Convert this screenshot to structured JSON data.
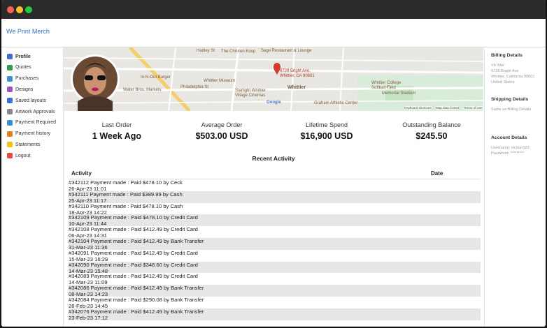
{
  "window": {
    "brand": "We Print Merch"
  },
  "nav": [
    "Profile",
    "Quotes",
    "Purchases",
    "Designs",
    "Saved layouts",
    "Artwork Approvals",
    "Payment Required",
    "Payment history",
    "Statements",
    "Logout"
  ],
  "map": {
    "labels": [
      "Hadley St",
      "The Chicken Koop",
      "Sage Restaurant & Lounge",
      "6728 Bright Ave,",
      "Whittier, CA 90601",
      "In-N-Out Burger",
      "Water Bros. Markets",
      "Philadelphia St",
      "Whittier Museum",
      "Whittier",
      "Starlight Whittier",
      "Village Cinemas",
      "Whittier College",
      "Softball Field",
      "Memorial Stadium",
      "Graham Athletic Center",
      "Google",
      "Keyboard shortcuts",
      "Map data ©2023",
      "Terms of Use"
    ]
  },
  "stats": [
    {
      "label": "Last Order",
      "value": "1 Week Ago"
    },
    {
      "label": "Average Order",
      "value": "$503.00 USD"
    },
    {
      "label": "Lifetime Spend",
      "value": "$16,900 USD"
    },
    {
      "label": "Outstanding Balance",
      "value": "$245.50"
    }
  ],
  "activity": {
    "title": "Recent Activity",
    "columns": [
      "Activity",
      "Date"
    ],
    "rows": [
      [
        "#342112 Payment made : Paid $478.10 by Ceck",
        "26-Apr-23 11:01"
      ],
      [
        "#342111 Payment made : Paid $389.99 by Cash",
        "25-Apr-23 11:17"
      ],
      [
        "#342110 Payment made : Paid $478.10 by Cash",
        "18-Apr-23 14:22"
      ],
      [
        "#342109 Payment made : Paid $478.10 by Credit Card",
        "10-Apr-23 11:44"
      ],
      [
        "#342108 Payment made : Paid $412.49 by Credit Card",
        "06-Apr-23 14:31"
      ],
      [
        "#342104 Payment made : Paid $412.49 by Bank Transfer",
        "31-Mar-23 11:36"
      ],
      [
        "#342091 Payment made : Paid $412.49 by Credit Card",
        "15-Mar-23 16:29"
      ],
      [
        "#342090 Payment made : Paid $348.60 by Credit Card",
        "14-Mar-23 15:48"
      ],
      [
        "#342089 Payment made : Paid $412.49 by Credit Card",
        "14-Mar-23 11:09"
      ],
      [
        "#342086 Payment made : Paid $412.49 by Bank Transfer",
        "08-Mar-23 14:23"
      ],
      [
        "#342084 Payment made : Paid $290.08 by Bank Transfer",
        "28-Feb-23 14:45"
      ],
      [
        "#342076 Payment made : Paid $412.49 by Bank Transfer",
        "23-Feb-23 17:12"
      ]
    ]
  },
  "details": [
    {
      "heading": "Billing Details",
      "lines": [
        "Vic Mar",
        "6728 Bright Ave",
        "Whittier, California 90601",
        "United States"
      ]
    },
    {
      "heading": "Shipping Details",
      "lines": [
        "Same as Billing Details"
      ]
    },
    {
      "heading": "Account Details",
      "lines": [
        "Username: vicmar123",
        "Password: *********"
      ]
    }
  ]
}
